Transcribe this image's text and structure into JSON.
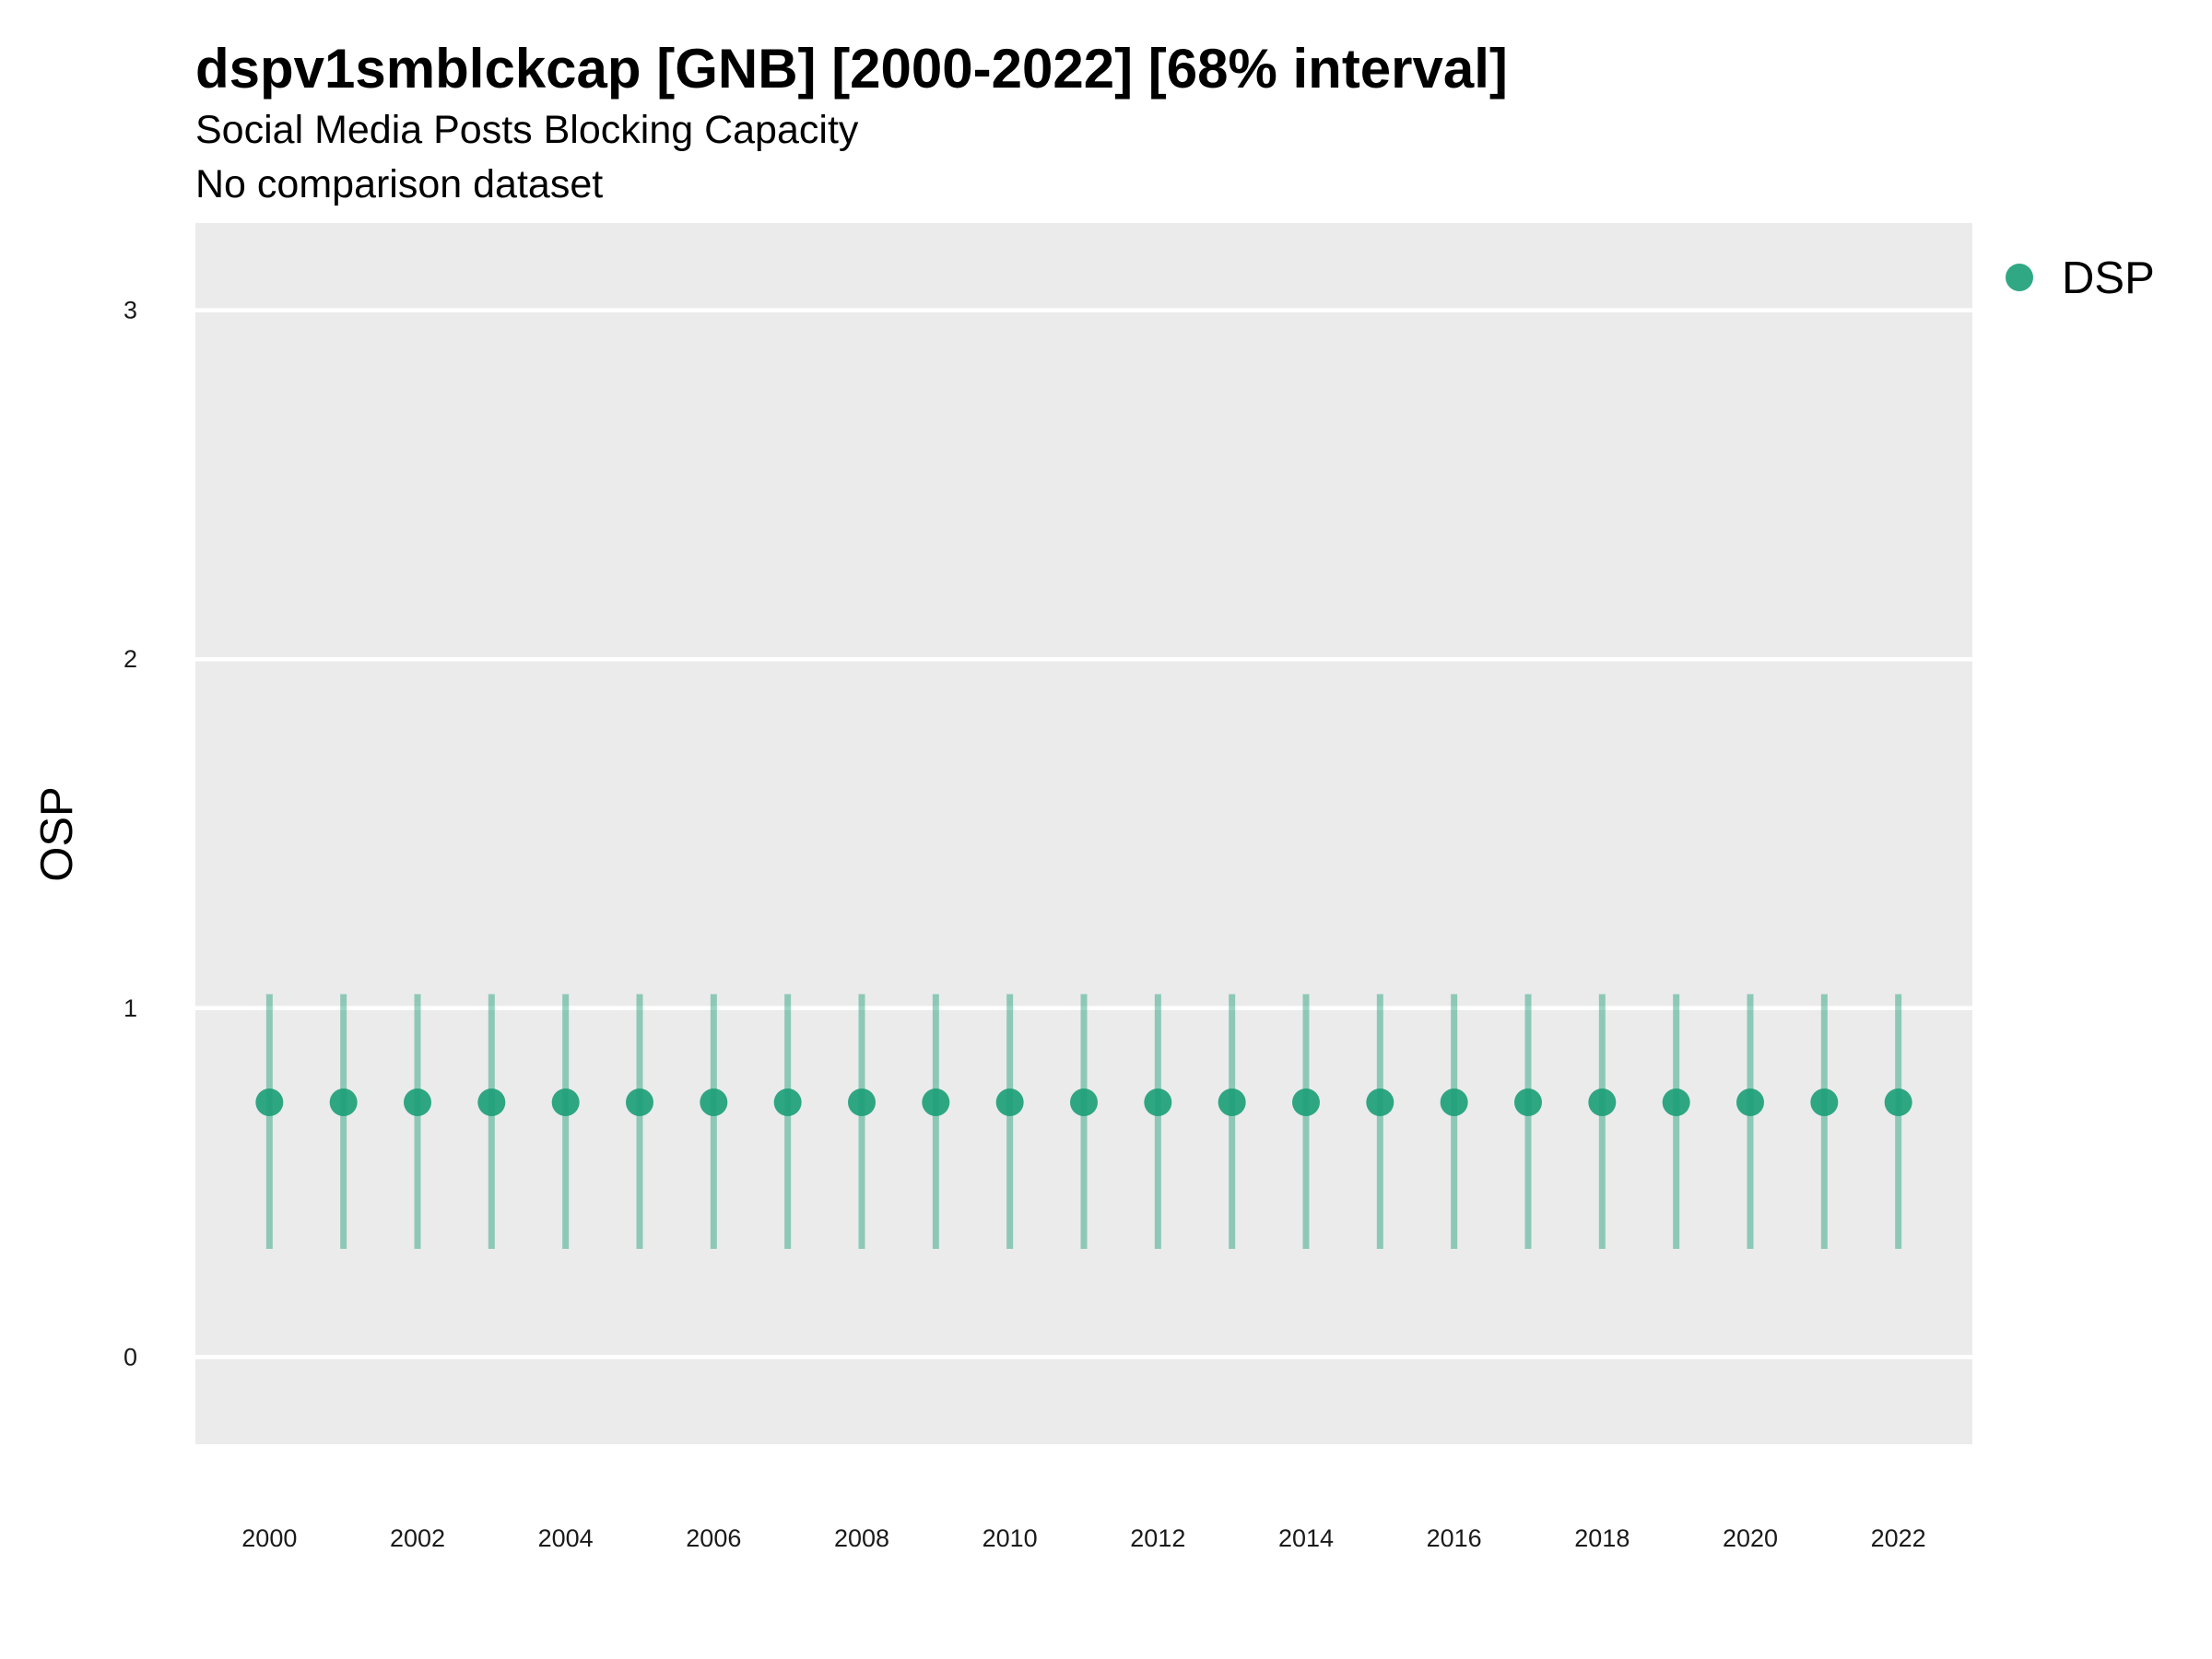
{
  "chart_data": {
    "type": "scatter",
    "title": "dspv1smblckcap [GNB] [2000-2022] [68% interval]",
    "subtitle": "Social Media Posts Blocking Capacity",
    "caption": "No comparison dataset",
    "xlabel": "",
    "ylabel": "OSP",
    "x_ticks": [
      "2000",
      "2002",
      "2004",
      "2006",
      "2008",
      "2010",
      "2012",
      "2014",
      "2016",
      "2018",
      "2020",
      "2022"
    ],
    "y_ticks": [
      "0",
      "1",
      "2",
      "3"
    ],
    "xlim": [
      1999,
      2023
    ],
    "ylim": [
      -0.25,
      3.25
    ],
    "grid": true,
    "legend": {
      "position": "right-top"
    },
    "series": [
      {
        "name": "DSP",
        "color": "#1b9e77",
        "x": [
          2000,
          2001,
          2002,
          2003,
          2004,
          2005,
          2006,
          2007,
          2008,
          2009,
          2010,
          2011,
          2012,
          2013,
          2014,
          2015,
          2016,
          2017,
          2018,
          2019,
          2020,
          2021,
          2022
        ],
        "y": [
          0.73,
          0.73,
          0.73,
          0.73,
          0.73,
          0.73,
          0.73,
          0.73,
          0.73,
          0.73,
          0.73,
          0.73,
          0.73,
          0.73,
          0.73,
          0.73,
          0.73,
          0.73,
          0.73,
          0.73,
          0.73,
          0.73,
          0.73
        ],
        "lower": [
          0.31,
          0.31,
          0.31,
          0.31,
          0.31,
          0.31,
          0.31,
          0.31,
          0.31,
          0.31,
          0.31,
          0.31,
          0.31,
          0.31,
          0.31,
          0.31,
          0.31,
          0.31,
          0.31,
          0.31,
          0.31,
          0.31,
          0.31
        ],
        "upper": [
          1.04,
          1.04,
          1.04,
          1.04,
          1.04,
          1.04,
          1.04,
          1.04,
          1.04,
          1.04,
          1.04,
          1.04,
          1.04,
          1.04,
          1.04,
          1.04,
          1.04,
          1.04,
          1.04,
          1.04,
          1.04,
          1.04,
          1.04
        ]
      }
    ]
  },
  "colors": {
    "panel_background": "#ebebeb",
    "gridline": "#ffffff",
    "point": "#1b9e77"
  }
}
